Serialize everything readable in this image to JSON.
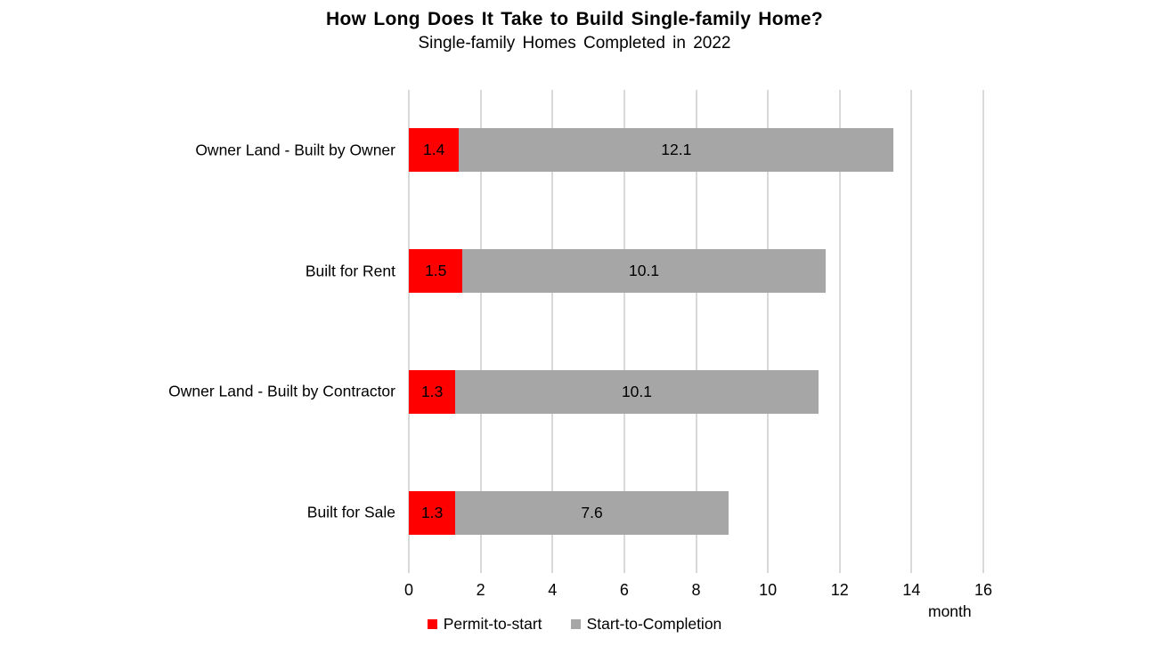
{
  "chart": {
    "title": "How Long Does It Take to Build Single-family Home?",
    "subtitle": "Single-family Homes Completed in 2022",
    "chart_data": {
      "type": "bar",
      "orientation": "horizontal",
      "stacked": true,
      "categories": [
        "Owner Land - Built by Owner",
        "Built for Rent",
        "Owner Land - Built by Contractor",
        "Built for Sale"
      ],
      "series": [
        {
          "name": "Permit-to-start",
          "color": "#fe0000",
          "values": [
            1.4,
            1.5,
            1.3,
            1.3
          ]
        },
        {
          "name": "Start-to-Completion",
          "color": "#a6a6a6",
          "values": [
            12.1,
            10.1,
            10.1,
            7.6
          ]
        }
      ],
      "xlabel": "month",
      "xlim": [
        0,
        16
      ],
      "xticks": [
        0,
        2,
        4,
        6,
        8,
        10,
        12,
        14,
        16
      ],
      "grid": "vertical",
      "legend_position": "bottom"
    },
    "colors": {
      "background": "#ffffff",
      "gridline": "#d9d9d9",
      "text": "#000000"
    }
  }
}
